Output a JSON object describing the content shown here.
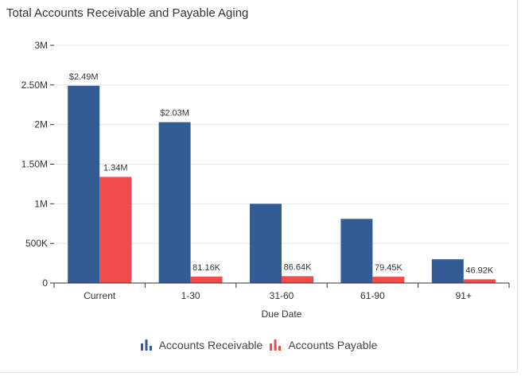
{
  "chart_data": {
    "type": "bar",
    "title": "Total Accounts Receivable and Payable Aging",
    "xlabel": "Due Date",
    "ylabel": "",
    "categories": [
      "Current",
      "1-30",
      "31-60",
      "61-90",
      "91+"
    ],
    "ylim": [
      0,
      3000000
    ],
    "yticks": [
      {
        "value": 0,
        "label": "0"
      },
      {
        "value": 500000,
        "label": "500K"
      },
      {
        "value": 1000000,
        "label": "1M"
      },
      {
        "value": 1500000,
        "label": "1.50M"
      },
      {
        "value": 2000000,
        "label": "2M"
      },
      {
        "value": 2500000,
        "label": "2.50M"
      },
      {
        "value": 3000000,
        "label": "3M"
      }
    ],
    "grid": true,
    "legend_position": "bottom",
    "series": [
      {
        "name": "Accounts Receivable",
        "color": "#345c94",
        "values": [
          2490000,
          2030000,
          1000000,
          810000,
          300000
        ],
        "labels": [
          "$2.49M",
          "$2.03M",
          "",
          "",
          ""
        ]
      },
      {
        "name": "Accounts Payable",
        "color": "#f24b4b",
        "values": [
          1340000,
          81160,
          86640,
          79450,
          46920
        ],
        "labels": [
          "1.34M",
          "81.16K",
          "86.64K",
          "79.45K",
          "46.92K"
        ]
      }
    ]
  }
}
